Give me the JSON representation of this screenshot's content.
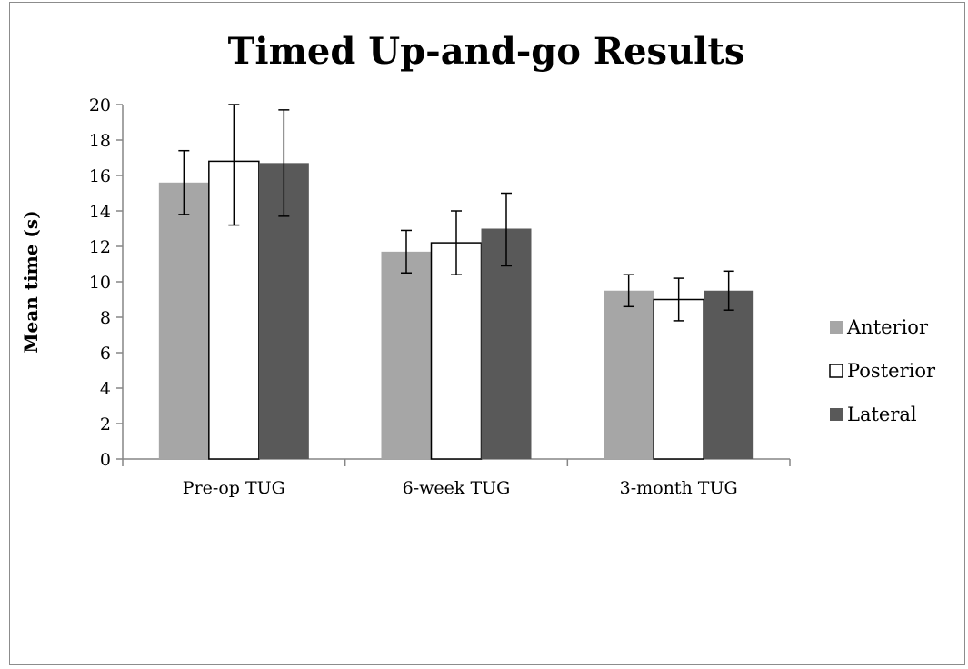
{
  "chart_data": {
    "type": "bar",
    "title": "Timed Up-and-go Results",
    "xlabel": "",
    "ylabel": "Mean time (s)",
    "ylim": [
      0,
      20
    ],
    "yticks": [
      0,
      2,
      4,
      6,
      8,
      10,
      12,
      14,
      16,
      18,
      20
    ],
    "categories": [
      "Pre-op TUG",
      "6-week TUG",
      "3-month TUG"
    ],
    "series": [
      {
        "name": "Anterior",
        "color": "#a6a6a6",
        "values": [
          15.6,
          11.7,
          9.5
        ],
        "error_low": [
          13.8,
          10.5,
          8.6
        ],
        "error_high": [
          17.4,
          12.9,
          10.4
        ]
      },
      {
        "name": "Posterior",
        "color": "#ffffff",
        "values": [
          16.8,
          12.2,
          9.0
        ],
        "error_low": [
          13.2,
          10.4,
          7.8
        ],
        "error_high": [
          20.0,
          14.0,
          10.2
        ]
      },
      {
        "name": "Lateral",
        "color": "#595959",
        "values": [
          16.7,
          13.0,
          9.5
        ],
        "error_low": [
          13.7,
          10.9,
          8.4
        ],
        "error_high": [
          19.7,
          15.0,
          10.6
        ]
      }
    ],
    "grid": false,
    "legend_position": "right"
  }
}
